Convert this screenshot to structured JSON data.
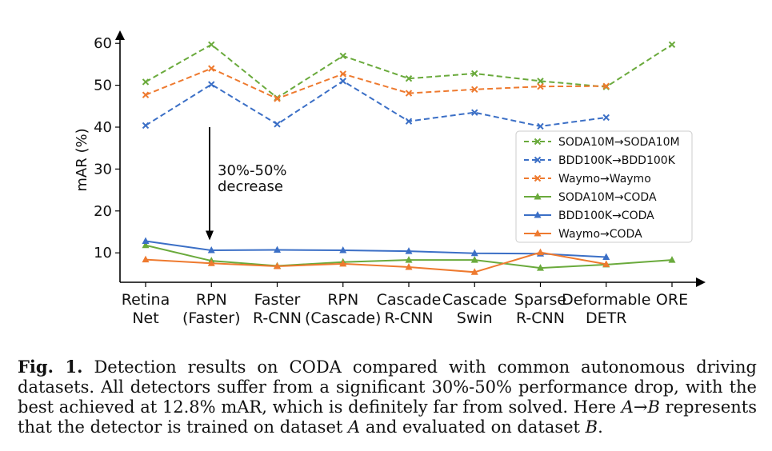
{
  "chart_data": {
    "type": "line",
    "ylabel": "mAR (%)",
    "ylim": [
      3,
      64
    ],
    "yticks": [
      "10",
      "20",
      "30",
      "40",
      "50",
      "60"
    ],
    "categories": [
      [
        "Retina",
        "Net"
      ],
      [
        "RPN",
        "(Faster)"
      ],
      [
        "Faster",
        "R-CNN"
      ],
      [
        "RPN",
        "(Cascade)"
      ],
      [
        "Cascade",
        "R-CNN"
      ],
      [
        "Cascade",
        "Swin"
      ],
      [
        "Sparse",
        "R-CNN"
      ],
      [
        "Deformable",
        "DETR"
      ],
      [
        "ORE",
        ""
      ]
    ],
    "legend_position": "center-right",
    "series": [
      {
        "name": "SODA10M→SODA10M",
        "style": "dashed",
        "marker": "x",
        "color": "#6aaa3c",
        "values": [
          50.8,
          59.7,
          47.0,
          57.0,
          51.6,
          52.8,
          51.0,
          49.6,
          59.7
        ]
      },
      {
        "name": "BDD100K→BDD100K",
        "style": "dashed",
        "marker": "x",
        "color": "#3b6fc6",
        "values": [
          40.4,
          50.2,
          40.7,
          51.0,
          41.4,
          43.5,
          40.2,
          42.3,
          null
        ]
      },
      {
        "name": "Waymo→Waymo",
        "style": "dashed",
        "marker": "x",
        "color": "#ee7a2f",
        "values": [
          47.7,
          54.0,
          46.8,
          52.7,
          48.1,
          49.0,
          49.7,
          49.8,
          null
        ]
      },
      {
        "name": "SODA10M→CODA",
        "style": "solid",
        "marker": "^",
        "color": "#6aaa3c",
        "values": [
          11.8,
          8.1,
          6.9,
          7.8,
          8.3,
          8.3,
          6.4,
          7.2,
          8.3
        ]
      },
      {
        "name": "BDD100K→CODA",
        "style": "solid",
        "marker": "^",
        "color": "#3b6fc6",
        "values": [
          12.8,
          10.6,
          10.7,
          10.6,
          10.4,
          9.9,
          9.8,
          9.0,
          null
        ]
      },
      {
        "name": "Waymo→CODA",
        "style": "solid",
        "marker": "^",
        "color": "#ee7a2f",
        "values": [
          8.4,
          7.5,
          6.8,
          7.4,
          6.6,
          5.4,
          10.1,
          7.3,
          null
        ]
      }
    ],
    "annotation": {
      "line1": "30%-50%",
      "line2": "decrease",
      "arrow_from": 40,
      "arrow_to": 13
    }
  },
  "caption": {
    "label": "Fig. 1.",
    "text1": "Detection results on CODA compared with common autonomous driving datasets. All detectors suffer from a significant 30%-50% performance drop, with the best achieved at 12.8% mAR, which is definitely far from solved. Here ",
    "math_a": "A",
    "arrow": "→",
    "math_b": "B",
    "text2": " represents that the detector is trained on dataset ",
    "math_a2": "A",
    "text3": " and evaluated on dataset ",
    "math_b2": "B",
    "text4": "."
  }
}
